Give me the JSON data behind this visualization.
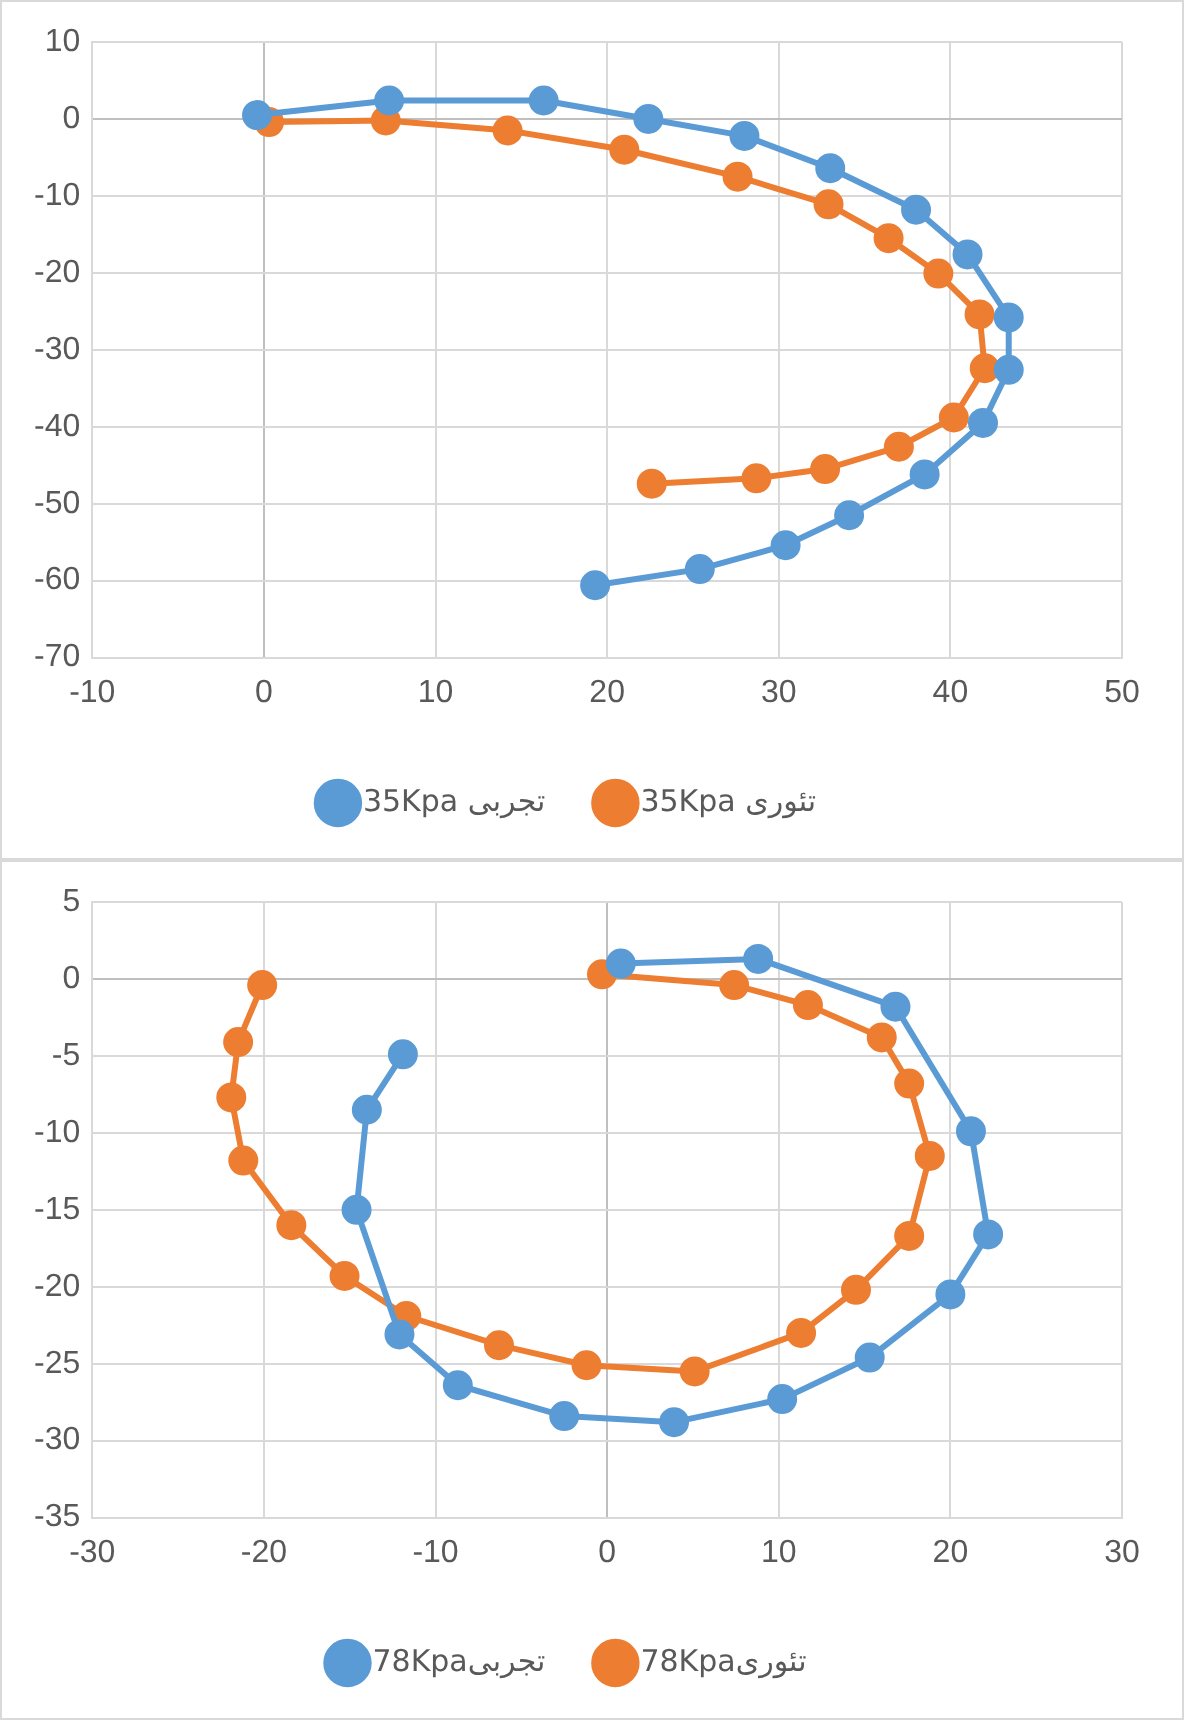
{
  "chart_data": [
    {
      "type": "line",
      "marker": "circle",
      "line_style": "solid",
      "grid": true,
      "legend": "bottom",
      "xlim": [
        -10,
        50
      ],
      "xticks": [
        -10,
        0,
        10,
        20,
        30,
        40,
        50
      ],
      "ylim": [
        -70,
        10
      ],
      "yticks": [
        -70,
        -60,
        -50,
        -40,
        -30,
        -20,
        -10,
        0,
        10
      ],
      "series": [
        {
          "name": "35Kpa تجربی",
          "color": "#5b9bd5",
          "x": [
            -0.4,
            7.3,
            16.3,
            22.4,
            28,
            33,
            38,
            41,
            43.4,
            43.4,
            41.9,
            38.5,
            34.1,
            30.4,
            25.4,
            19.3
          ],
          "values": [
            0.5,
            2.4,
            2.4,
            0,
            -2.2,
            -6.4,
            -11.8,
            -17.6,
            -25.8,
            -32.6,
            -39.5,
            -46.2,
            -51.5,
            -55.4,
            -58.5,
            -60.6
          ]
        },
        {
          "name": "35Kpa تئوری",
          "color": "#ed7d31",
          "x": [
            0.3,
            7.1,
            14.2,
            21,
            27.6,
            32.9,
            36.4,
            39.3,
            41.7,
            42,
            40.2,
            37,
            32.7,
            28.7,
            22.6
          ],
          "values": [
            -0.4,
            -0.2,
            -1.5,
            -4,
            -7.5,
            -11.1,
            -15.5,
            -20.1,
            -25.4,
            -32.4,
            -38.8,
            -42.6,
            -45.5,
            -46.7,
            -47.4
          ]
        }
      ]
    },
    {
      "type": "line",
      "marker": "circle",
      "line_style": "solid",
      "grid": true,
      "legend": "bottom",
      "xlim": [
        -30,
        30
      ],
      "xticks": [
        -30,
        -20,
        -10,
        0,
        10,
        20,
        30
      ],
      "ylim": [
        -35,
        5
      ],
      "yticks": [
        -35,
        -30,
        -25,
        -20,
        -15,
        -10,
        -5,
        0,
        5
      ],
      "series": [
        {
          "name": "78Kpaتجربی",
          "color": "#5b9bd5",
          "x": [
            0.8,
            8.8,
            16.8,
            21.2,
            22.2,
            20,
            15.3,
            10.2,
            3.9,
            -2.5,
            -8.7,
            -12.1,
            -14.6,
            -14,
            -11.9
          ],
          "values": [
            1,
            1.3,
            -1.8,
            -9.9,
            -16.6,
            -20.5,
            -24.6,
            -27.3,
            -28.8,
            -28.4,
            -26.4,
            -23.1,
            -15,
            -8.5,
            -4.9
          ]
        },
        {
          "name": "78Kpaتئوری",
          "color": "#ed7d31",
          "x": [
            -0.3,
            7.4,
            11.7,
            16,
            17.6,
            18.8,
            17.6,
            14.5,
            11.3,
            5.1,
            -1.2,
            -6.3,
            -11.7,
            -15.3,
            -18.4,
            -21.2,
            -21.9,
            -21.5,
            -20.1
          ],
          "values": [
            0.3,
            -0.4,
            -1.7,
            -3.8,
            -6.8,
            -11.5,
            -16.7,
            -20.2,
            -23,
            -25.5,
            -25.1,
            -23.8,
            -21.9,
            -19.3,
            -16,
            -11.8,
            -7.7,
            -4.1,
            -0.4
          ]
        }
      ]
    }
  ]
}
